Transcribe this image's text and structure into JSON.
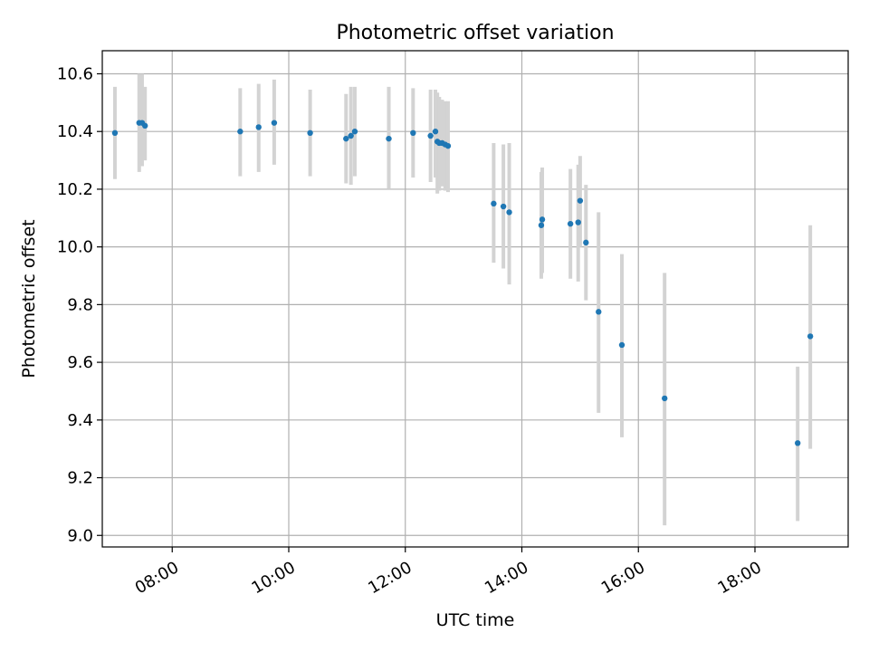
{
  "chart_data": {
    "type": "scatter",
    "title": "Photometric offset variation",
    "xlabel": "UTC time",
    "ylabel": "Photometric offset",
    "x_tick_labels": [
      "08:00",
      "10:00",
      "12:00",
      "14:00",
      "16:00",
      "18:00"
    ],
    "x_ticks": [
      "08:00",
      "10:00",
      "12:00",
      "14:00",
      "16:00",
      "18:00"
    ],
    "y_tick_labels": [
      "9.0",
      "9.2",
      "9.4",
      "9.6",
      "9.8",
      "10.0",
      "10.2",
      "10.4",
      "10.6"
    ],
    "y_ticks": [
      9.0,
      9.2,
      9.4,
      9.6,
      9.8,
      10.0,
      10.2,
      10.4,
      10.6
    ],
    "xlim": [
      "06:48",
      "19:36"
    ],
    "ylim": [
      8.96,
      10.68
    ],
    "grid": true,
    "colors": {
      "points": "#1f77b4",
      "error_bars": "#d3d3d3",
      "grid": "#b0b0b0"
    },
    "points": [
      {
        "time": "07:01",
        "y": 10.395,
        "lo": 10.235,
        "hi": 10.555
      },
      {
        "time": "07:26",
        "y": 10.43,
        "lo": 10.26,
        "hi": 10.6
      },
      {
        "time": "07:29",
        "y": 10.43,
        "lo": 10.28,
        "hi": 10.6
      },
      {
        "time": "07:32",
        "y": 10.42,
        "lo": 10.3,
        "hi": 10.555
      },
      {
        "time": "09:10",
        "y": 10.4,
        "lo": 10.245,
        "hi": 10.55
      },
      {
        "time": "09:29",
        "y": 10.415,
        "lo": 10.26,
        "hi": 10.565
      },
      {
        "time": "09:45",
        "y": 10.43,
        "lo": 10.285,
        "hi": 10.58
      },
      {
        "time": "10:22",
        "y": 10.395,
        "lo": 10.245,
        "hi": 10.545
      },
      {
        "time": "10:59",
        "y": 10.375,
        "lo": 10.22,
        "hi": 10.53
      },
      {
        "time": "11:04",
        "y": 10.385,
        "lo": 10.215,
        "hi": 10.555
      },
      {
        "time": "11:08",
        "y": 10.4,
        "lo": 10.245,
        "hi": 10.555
      },
      {
        "time": "11:43",
        "y": 10.375,
        "lo": 10.2,
        "hi": 10.555
      },
      {
        "time": "12:08",
        "y": 10.395,
        "lo": 10.24,
        "hi": 10.55
      },
      {
        "time": "12:26",
        "y": 10.385,
        "lo": 10.225,
        "hi": 10.545
      },
      {
        "time": "12:31",
        "y": 10.4,
        "lo": 10.24,
        "hi": 10.545
      },
      {
        "time": "12:33",
        "y": 10.365,
        "lo": 10.185,
        "hi": 10.535
      },
      {
        "time": "12:35",
        "y": 10.36,
        "lo": 10.195,
        "hi": 10.52
      },
      {
        "time": "12:38",
        "y": 10.36,
        "lo": 10.21,
        "hi": 10.51
      },
      {
        "time": "12:41",
        "y": 10.355,
        "lo": 10.195,
        "hi": 10.505
      },
      {
        "time": "12:44",
        "y": 10.35,
        "lo": 10.19,
        "hi": 10.505
      },
      {
        "time": "13:31",
        "y": 10.15,
        "lo": 9.945,
        "hi": 10.36
      },
      {
        "time": "13:41",
        "y": 10.14,
        "lo": 9.925,
        "hi": 10.355
      },
      {
        "time": "13:47",
        "y": 10.12,
        "lo": 9.87,
        "hi": 10.36
      },
      {
        "time": "14:20",
        "y": 10.075,
        "lo": 9.89,
        "hi": 10.26
      },
      {
        "time": "14:21",
        "y": 10.095,
        "lo": 9.91,
        "hi": 10.275
      },
      {
        "time": "14:50",
        "y": 10.08,
        "lo": 9.89,
        "hi": 10.27
      },
      {
        "time": "14:58",
        "y": 10.085,
        "lo": 9.88,
        "hi": 10.285
      },
      {
        "time": "15:00",
        "y": 10.16,
        "lo": 10.0,
        "hi": 10.315
      },
      {
        "time": "15:06",
        "y": 10.015,
        "lo": 9.815,
        "hi": 10.215
      },
      {
        "time": "15:19",
        "y": 9.775,
        "lo": 9.425,
        "hi": 10.12
      },
      {
        "time": "15:43",
        "y": 9.66,
        "lo": 9.34,
        "hi": 9.975
      },
      {
        "time": "16:27",
        "y": 9.475,
        "lo": 9.035,
        "hi": 9.91
      },
      {
        "time": "18:44",
        "y": 9.32,
        "lo": 9.05,
        "hi": 9.585
      },
      {
        "time": "18:57",
        "y": 9.69,
        "lo": 9.3,
        "hi": 10.075
      }
    ]
  }
}
